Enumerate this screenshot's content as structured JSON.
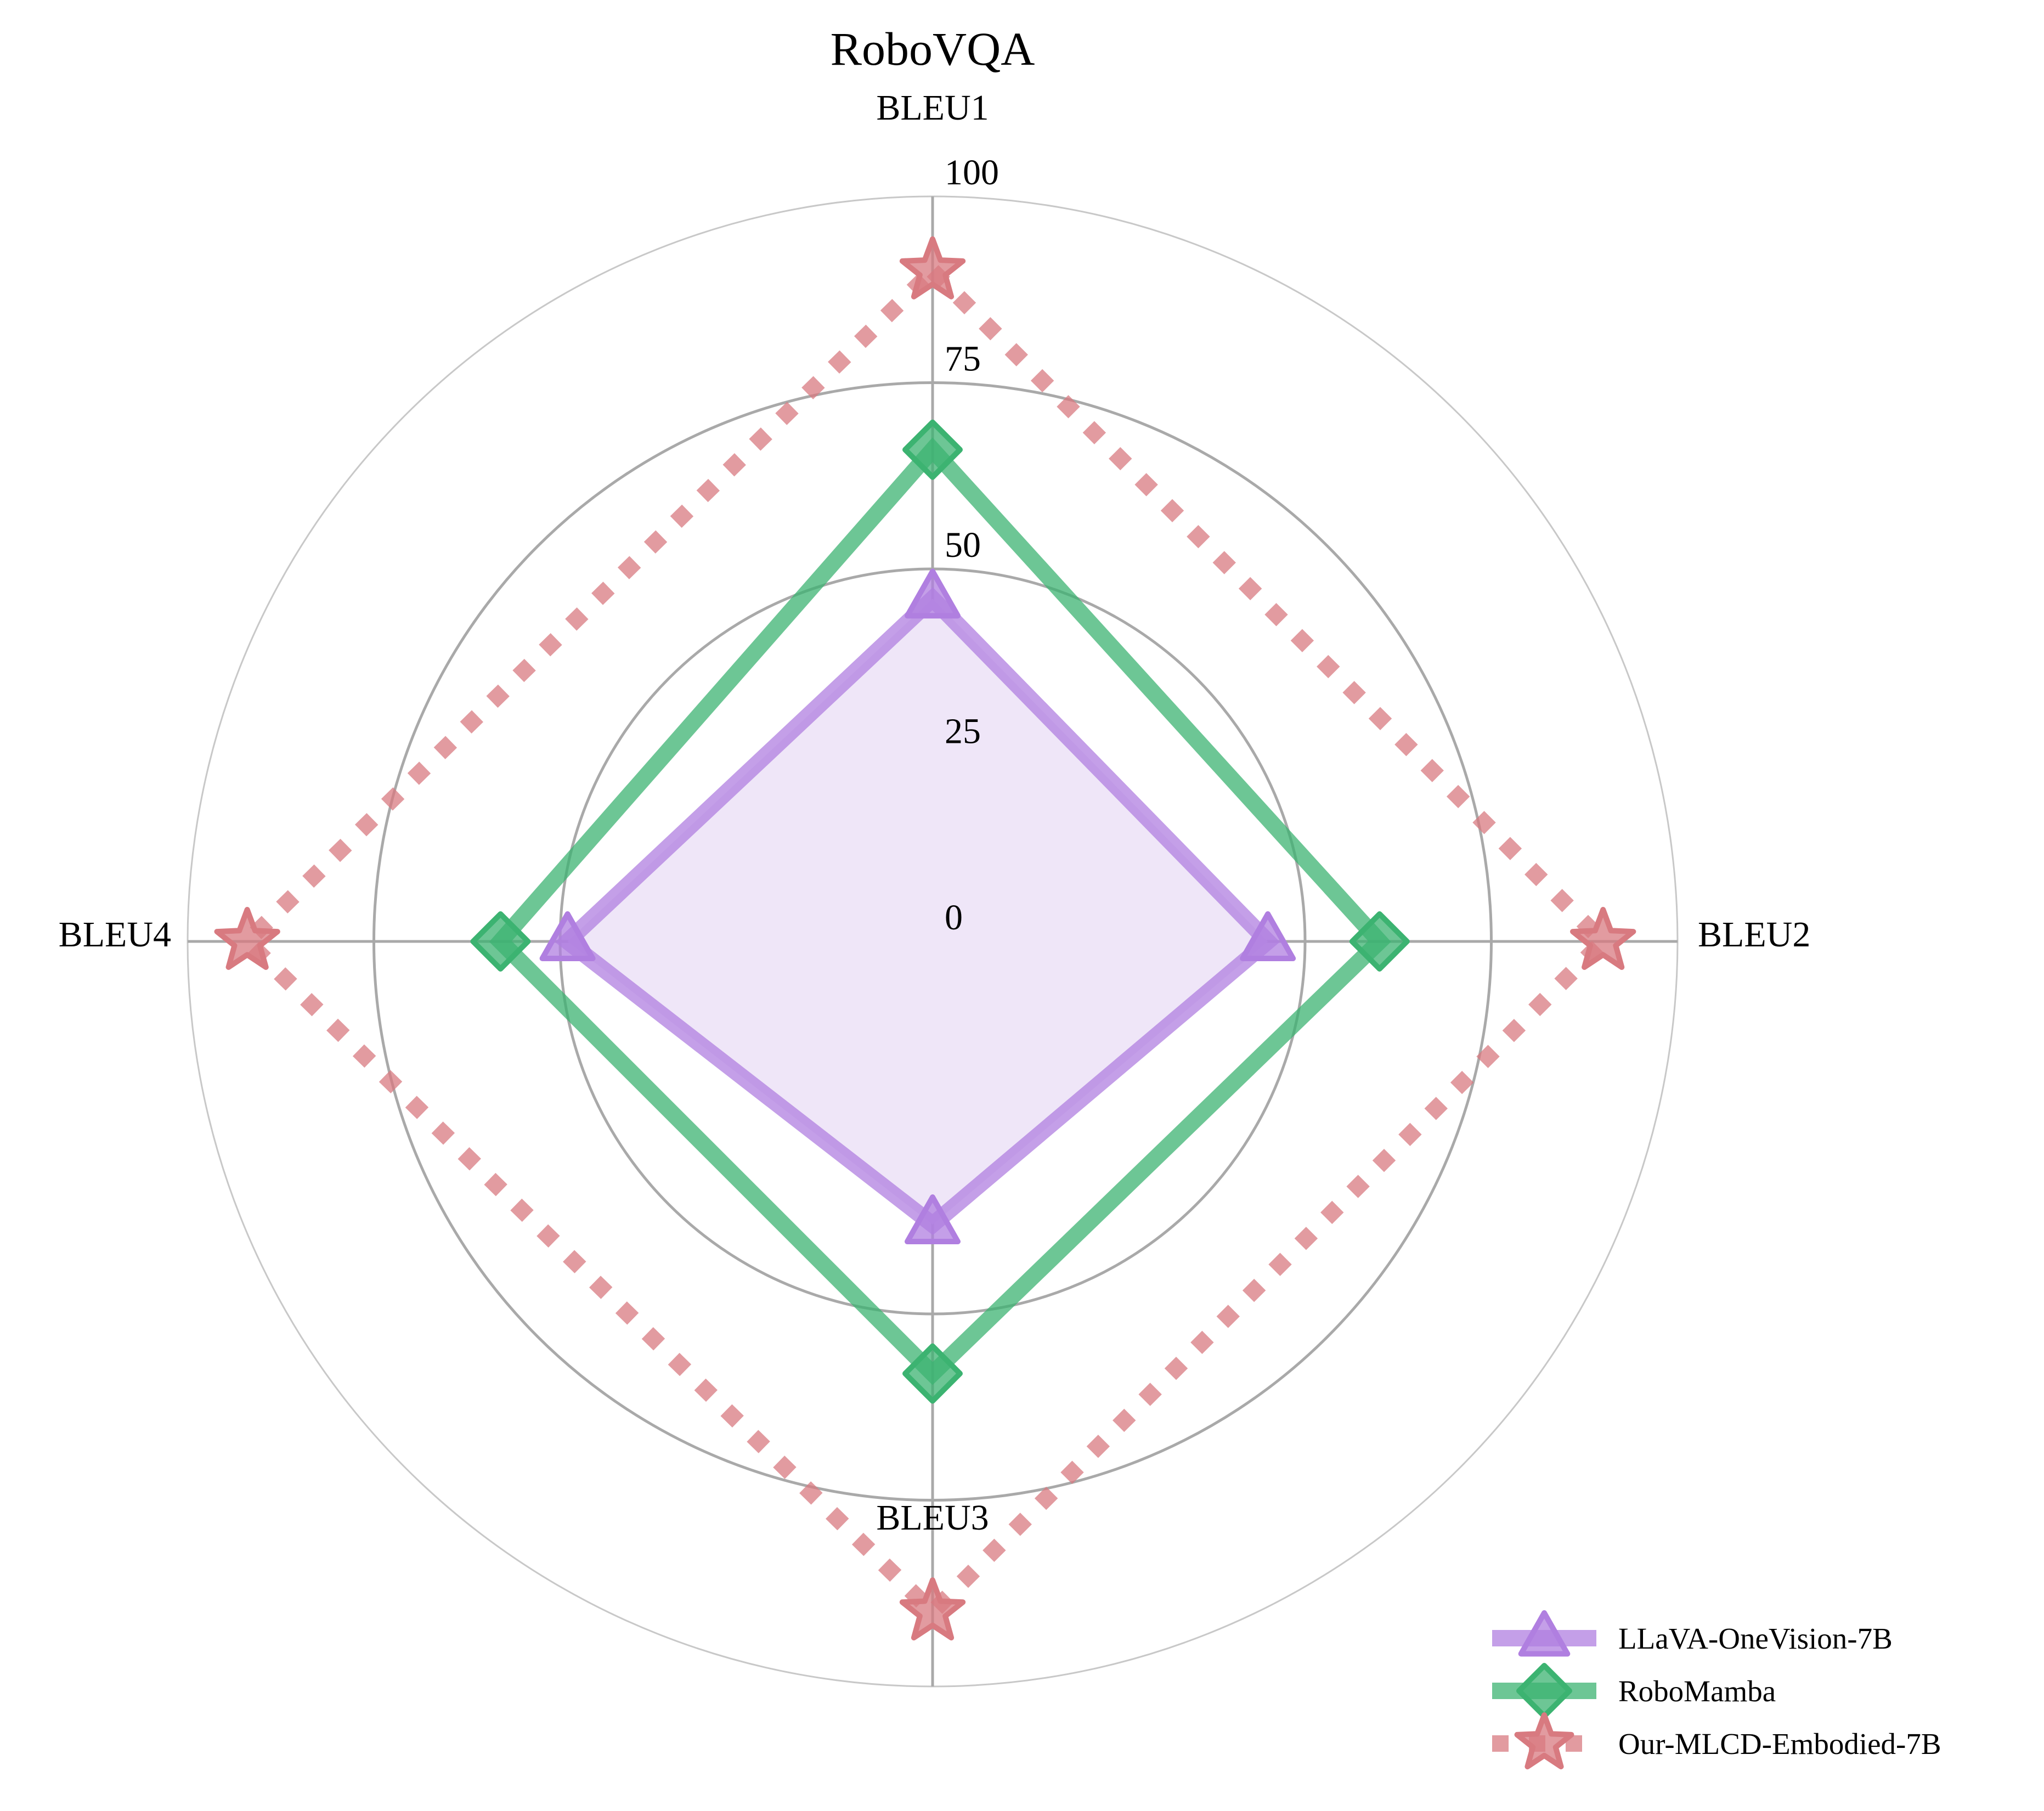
{
  "chart_data": {
    "type": "radar",
    "title": "RoboVQA",
    "axes": [
      "BLEU1",
      "BLEU2",
      "BLEU3",
      "BLEU4"
    ],
    "rlim": [
      0,
      100
    ],
    "radial_ticks": [
      "0",
      "25",
      "50",
      "75",
      "100"
    ],
    "radial_tick_values": [
      0,
      25,
      50,
      75,
      100
    ],
    "grid": true,
    "legend_position": "lower-right",
    "series": [
      {
        "name": "LLaVA-OneVision-7B",
        "values": [
          46,
          45,
          38,
          49
        ],
        "color": "#b07fe0",
        "marker": "triangle",
        "line_style": "solid",
        "filled": true,
        "fill_color": "#efe6f8"
      },
      {
        "name": "RoboMamba",
        "values": [
          66,
          60,
          58,
          58
        ],
        "color": "#3cb371",
        "marker": "diamond",
        "line_style": "solid",
        "filled": false
      },
      {
        "name": "Our-MLCD-Embodied-7B",
        "values": [
          90,
          90,
          90,
          92
        ],
        "color": "#d87a80",
        "marker": "star",
        "line_style": "dotted",
        "filled": false
      }
    ]
  }
}
